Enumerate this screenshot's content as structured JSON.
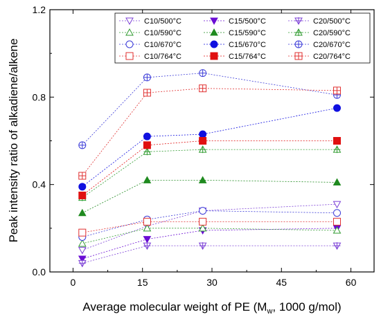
{
  "chart_data": {
    "type": "scatter",
    "xlabel": "Average molecular weight of PE (M",
    "xlabel_sub": "w",
    "xlabel_suffix": ", 1000 g/mol)",
    "ylabel": "Peak intensity ratio of alkadiene/alkene",
    "xlim": [
      -5,
      65
    ],
    "ylim": [
      0.0,
      1.2
    ],
    "xticks": [
      0,
      15,
      30,
      45,
      60
    ],
    "yticks": [
      0.0,
      0.4,
      0.8,
      1.2
    ],
    "xtick_labels": [
      "0",
      "15",
      "30",
      "45",
      "60"
    ],
    "ytick_labels": [
      "0.0",
      "0.4",
      "0.8",
      "1.2"
    ],
    "grid": false,
    "legend_placement": "top-right",
    "x": [
      2,
      16,
      28,
      57
    ],
    "series": [
      {
        "name": "C10/500°C",
        "color": "#7b3fd6",
        "marker": "tri-down-open",
        "values": [
          0.1,
          0.21,
          0.28,
          0.31
        ]
      },
      {
        "name": "C15/500°C",
        "color": "#6a0dd4",
        "marker": "tri-down-filled",
        "values": [
          0.06,
          0.15,
          0.19,
          0.2
        ]
      },
      {
        "name": "C20/500°C",
        "color": "#7b3fd6",
        "marker": "tri-down-cross",
        "values": [
          0.04,
          0.12,
          0.12,
          0.12
        ]
      },
      {
        "name": "C10/590°C",
        "color": "#2e9a2e",
        "marker": "tri-up-open",
        "values": [
          0.13,
          0.2,
          0.2,
          0.19
        ]
      },
      {
        "name": "C15/590°C",
        "color": "#1f8a1f",
        "marker": "tri-up-filled",
        "values": [
          0.27,
          0.42,
          0.42,
          0.41
        ]
      },
      {
        "name": "C20/590°C",
        "color": "#2e9a2e",
        "marker": "tri-up-cross",
        "values": [
          0.34,
          0.55,
          0.56,
          0.56
        ]
      },
      {
        "name": "C10/670°C",
        "color": "#3a3ad8",
        "marker": "circle-open",
        "values": [
          0.16,
          0.24,
          0.28,
          0.27
        ]
      },
      {
        "name": "C15/670°C",
        "color": "#1010e0",
        "marker": "circle-filled",
        "values": [
          0.39,
          0.62,
          0.63,
          0.75
        ]
      },
      {
        "name": "C20/670°C",
        "color": "#3a3ad8",
        "marker": "circle-cross",
        "values": [
          0.58,
          0.89,
          0.91,
          0.81
        ]
      },
      {
        "name": "C10/764°C",
        "color": "#e03030",
        "marker": "square-open",
        "values": [
          0.18,
          0.23,
          0.23,
          0.23
        ]
      },
      {
        "name": "C15/764°C",
        "color": "#e01010",
        "marker": "square-filled",
        "values": [
          0.35,
          0.58,
          0.6,
          0.6
        ]
      },
      {
        "name": "C20/764°C",
        "color": "#e03030",
        "marker": "square-cross",
        "values": [
          0.44,
          0.82,
          0.84,
          0.83
        ]
      }
    ],
    "legend_order": [
      0,
      1,
      2,
      3,
      4,
      5,
      6,
      7,
      8,
      9,
      10,
      11
    ]
  }
}
